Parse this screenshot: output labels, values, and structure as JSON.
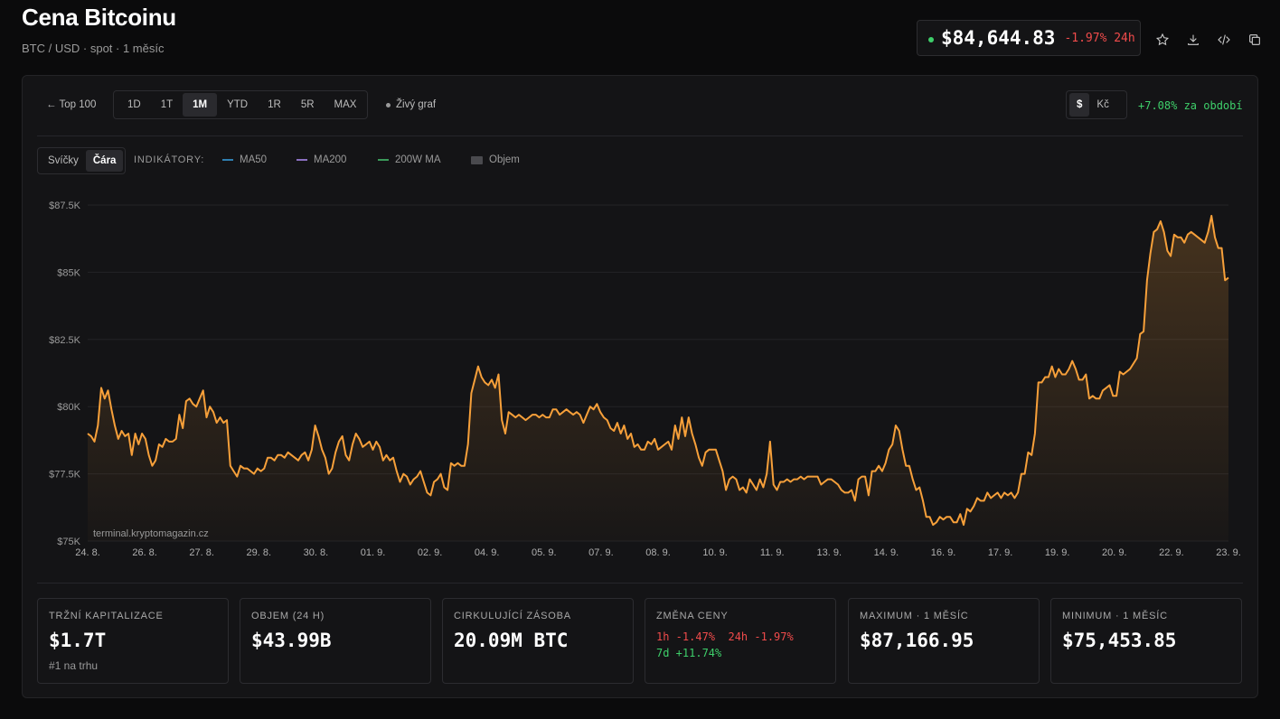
{
  "header": {
    "title": "Cena Bitcoinu",
    "subtitle": "BTC / USD · spot · 1 měsíc",
    "price": "$84,644.83",
    "price_change": "-1.97% 24h",
    "icons": [
      "star-icon",
      "download-icon",
      "embed-code-icon",
      "copy-icon"
    ]
  },
  "toolbar": {
    "back_label": "← Top 100",
    "ranges": [
      "1D",
      "1T",
      "1M",
      "YTD",
      "1R",
      "5R",
      "MAX"
    ],
    "active_range": "1M",
    "live_label": "Živý graf",
    "currencies": [
      "$",
      "Kč"
    ],
    "active_currency": "$",
    "period_change": "+7.08% za období"
  },
  "chart_controls": {
    "modes": [
      "Svíčky",
      "Čára"
    ],
    "active_mode": "Čára",
    "indicators_label": "INDIKÁTORY:",
    "indicators": [
      {
        "name": "MA50",
        "color": "#2f7fb0"
      },
      {
        "name": "MA200",
        "color": "#8a6fc0"
      },
      {
        "name": "200W MA",
        "color": "#3a9a5a"
      },
      {
        "name": "Objem",
        "color": "#4a4a4e"
      }
    ]
  },
  "watermark": "terminal.kryptomagazin.cz",
  "colors": {
    "line": "#f7a03a",
    "positive": "#3ecf6a",
    "negative": "#f04b4b"
  },
  "chart_data": {
    "type": "area",
    "title": "",
    "xlabel": "",
    "ylabel": "",
    "ylim": [
      75000,
      87500
    ],
    "yticks": [
      "$87.5K",
      "$85K",
      "$82.5K",
      "$80K",
      "$77.5K",
      "$75K"
    ],
    "ytick_values": [
      87500,
      85000,
      82500,
      80000,
      77500,
      75000
    ],
    "xticks": [
      "24. 8.",
      "26. 8.",
      "27. 8.",
      "29. 8.",
      "30. 8.",
      "01. 9.",
      "02. 9.",
      "04. 9.",
      "05. 9.",
      "07. 9.",
      "08. 9.",
      "10. 9.",
      "11. 9.",
      "13. 9.",
      "14. 9.",
      "16. 9.",
      "17. 9.",
      "19. 9.",
      "20. 9.",
      "22. 9.",
      "23. 9."
    ],
    "series": [
      {
        "name": "",
        "x_start": "24. 8.",
        "x_end": "23. 9.",
        "values": [
          79000,
          78900,
          78700,
          79300,
          80700,
          80300,
          80600,
          79900,
          79300,
          78800,
          79100,
          78900,
          79000,
          78200,
          79000,
          78600,
          79000,
          78800,
          78200,
          77800,
          78000,
          78600,
          78500,
          78800,
          78700,
          78700,
          78800,
          79700,
          79200,
          80200,
          80300,
          80100,
          80000,
          80300,
          80600,
          79600,
          80000,
          79800,
          79400,
          79600,
          79400,
          79500,
          77800,
          77600,
          77400,
          77800,
          77700,
          77700,
          77600,
          77500,
          77700,
          77600,
          77700,
          78100,
          78100,
          78000,
          78200,
          78200,
          78100,
          78300,
          78200,
          78100,
          78000,
          78200,
          78300,
          78000,
          78400,
          79300,
          78900,
          78400,
          78100,
          77500,
          77700,
          78300,
          78700,
          78900,
          78200,
          78000,
          78600,
          79000,
          78800,
          78500,
          78600,
          78700,
          78400,
          78700,
          78500,
          78000,
          78200,
          78000,
          78100,
          77600,
          77200,
          77500,
          77400,
          77100,
          77300,
          77400,
          77600,
          77200,
          76800,
          76700,
          77200,
          77300,
          77500,
          77000,
          76900,
          77900,
          77800,
          77900,
          77800,
          77800,
          78600,
          80500,
          81000,
          81500,
          81100,
          80900,
          80800,
          81000,
          80700,
          81200,
          79500,
          79000,
          79800,
          79700,
          79600,
          79700,
          79600,
          79500,
          79600,
          79700,
          79700,
          79600,
          79700,
          79600,
          79600,
          79900,
          79900,
          79700,
          79800,
          79900,
          79800,
          79700,
          79800,
          79700,
          79400,
          79700,
          80000,
          79900,
          80100,
          79800,
          79600,
          79500,
          79200,
          79100,
          79400,
          79000,
          79300,
          78800,
          79000,
          78500,
          78600,
          78400,
          78400,
          78700,
          78600,
          78800,
          78400,
          78500,
          78600,
          78700,
          78400,
          79300,
          78800,
          79600,
          78900,
          79600,
          79000,
          78600,
          78100,
          77800,
          78300,
          78400,
          78400,
          78400,
          78000,
          77600,
          76900,
          77300,
          77400,
          77300,
          76900,
          77000,
          76800,
          77300,
          77100,
          76900,
          77300,
          77000,
          77500,
          78700,
          77100,
          76900,
          77200,
          77200,
          77300,
          77200,
          77300,
          77300,
          77400,
          77300,
          77400,
          77400,
          77400,
          77400,
          77100,
          77200,
          77300,
          77300,
          77200,
          77100,
          76900,
          76800,
          76800,
          76900,
          76500,
          77300,
          77400,
          77400,
          76700,
          77600,
          77600,
          77800,
          77600,
          77900,
          78400,
          78600,
          79300,
          79100,
          78400,
          77800,
          77800,
          77300,
          76900,
          77000,
          76500,
          75900,
          75900,
          75600,
          75700,
          75900,
          75800,
          75900,
          75900,
          75700,
          75700,
          76000,
          75600,
          76200,
          76100,
          76300,
          76600,
          76500,
          76500,
          76800,
          76600,
          76700,
          76800,
          76600,
          76800,
          76700,
          76800,
          76600,
          76800,
          77500,
          77500,
          78300,
          78200,
          79000,
          80900,
          80900,
          81100,
          81100,
          81500,
          81100,
          81400,
          81200,
          81200,
          81400,
          81700,
          81400,
          81000,
          81000,
          81200,
          80300,
          80400,
          80300,
          80300,
          80600,
          80700,
          80800,
          80400,
          80400,
          81300,
          81200,
          81300,
          81400,
          81600,
          81800,
          82700,
          82800,
          84700,
          85700,
          86500,
          86600,
          86900,
          86500,
          85800,
          85600,
          86400,
          86300,
          86300,
          86100,
          86400,
          86500,
          86400,
          86300,
          86200,
          86100,
          86500,
          87100,
          86300,
          85900,
          85900,
          84700,
          84800
        ]
      }
    ]
  },
  "stats": [
    {
      "label": "TRŽNÍ KAPITALIZACE",
      "value": "$1.7T",
      "sub": "#1 na trhu"
    },
    {
      "label": "OBJEM (24 H)",
      "value": "$43.99B"
    },
    {
      "label": "CIRKULUJÍCÍ ZÁSOBA",
      "value": "20.09M BTC"
    },
    {
      "label": "ZMĚNA CENY",
      "changes": {
        "h1": "1h -1.47%",
        "h24": "24h -1.97%",
        "d7": "7d +11.74%"
      }
    },
    {
      "label": "MAXIMUM · 1 MĚSÍC",
      "value": "$87,166.95"
    },
    {
      "label": "MINIMUM · 1 MĚSÍC",
      "value": "$75,453.85"
    }
  ]
}
